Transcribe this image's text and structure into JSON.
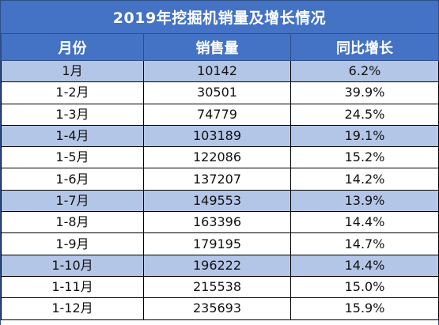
{
  "title": "2019年挖掘机销量及增长情况",
  "columns": [
    "月份",
    "销售量",
    "同比增长"
  ],
  "rows": [
    {
      "month": "1月",
      "sales": "10142",
      "growth": "6.2%"
    },
    {
      "month": "1-2月",
      "sales": "30501",
      "growth": "39.9%"
    },
    {
      "month": "1-3月",
      "sales": "74779",
      "growth": "24.5%"
    },
    {
      "month": "1-4月",
      "sales": "103189",
      "growth": "19.1%"
    },
    {
      "month": "1-5月",
      "sales": "122086",
      "growth": "15.2%"
    },
    {
      "month": "1-6月",
      "sales": "137207",
      "growth": "14.2%"
    },
    {
      "month": "1-7月",
      "sales": "149553",
      "growth": "13.9%"
    },
    {
      "month": "1-8月",
      "sales": "163396",
      "growth": "14.4%"
    },
    {
      "month": "1-9月",
      "sales": "179195",
      "growth": "14.7%"
    },
    {
      "month": "1-10月",
      "sales": "196222",
      "growth": "14.4%"
    },
    {
      "month": "1-11月",
      "sales": "215538",
      "growth": "15.0%"
    },
    {
      "month": "1-12月",
      "sales": "235693",
      "growth": "15.9%"
    }
  ],
  "colors": {
    "header_bg": "#4472c4",
    "header_text": "#ffffff",
    "band_shade": "#b4c6e7",
    "band_plain": "#ffffff"
  }
}
